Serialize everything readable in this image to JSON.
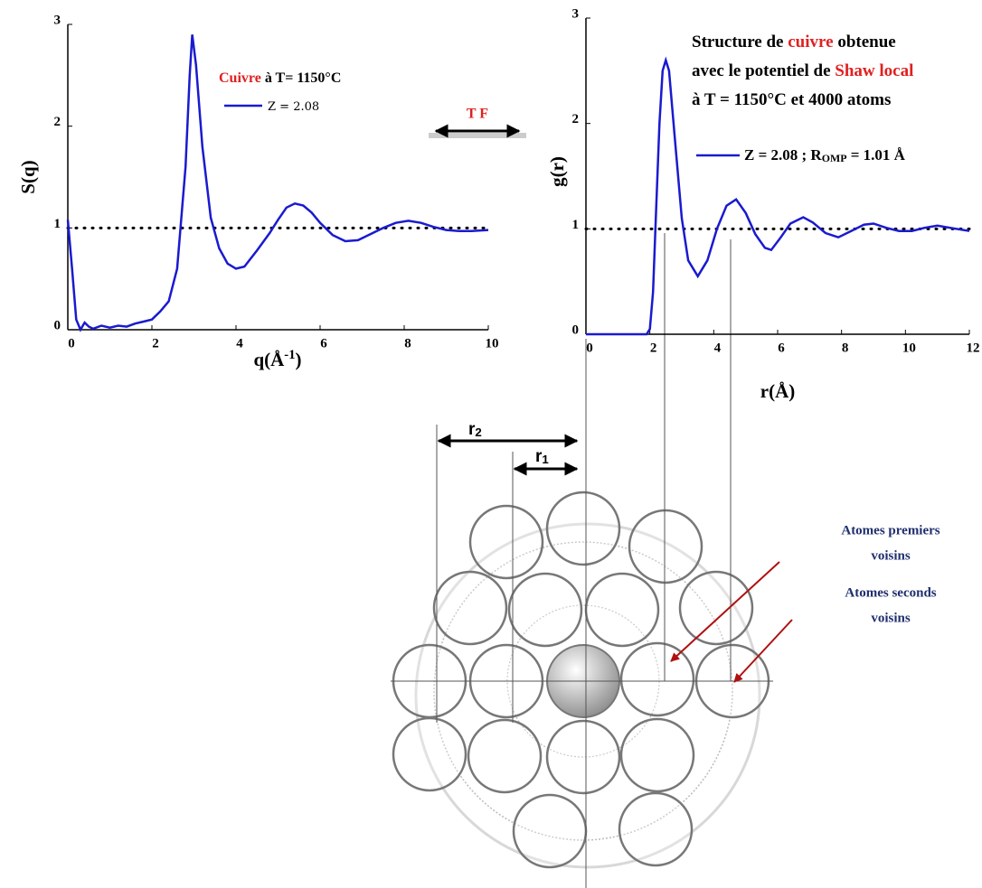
{
  "chart_data": [
    {
      "type": "line",
      "legend_title": [
        {
          "text": "Cuivre",
          "color": "#e02020"
        },
        {
          "text": " à T= 1150°C",
          "color": "#000000"
        }
      ],
      "ylabel": "S(q)",
      "xlabel": [
        "q(Å",
        "-1",
        ")"
      ],
      "xlim": [
        0,
        10
      ],
      "ylim": [
        0,
        3
      ],
      "xticks": [
        0,
        2,
        4,
        6,
        8,
        10
      ],
      "yticks": [
        0,
        1,
        2,
        3
      ],
      "reference_line": 1,
      "x": [
        0,
        0.1,
        0.2,
        0.3,
        0.4,
        0.5,
        0.6,
        0.8,
        1.0,
        1.2,
        1.4,
        1.6,
        1.8,
        2.0,
        2.2,
        2.4,
        2.6,
        2.8,
        2.9,
        2.96,
        3.05,
        3.2,
        3.4,
        3.6,
        3.8,
        4.0,
        4.2,
        4.5,
        4.8,
        5.0,
        5.2,
        5.4,
        5.6,
        5.8,
        6.0,
        6.3,
        6.6,
        6.9,
        7.2,
        7.5,
        7.8,
        8.1,
        8.4,
        8.7,
        9.0,
        9.3,
        9.6,
        10
      ],
      "series": [
        {
          "name": [
            "Z = 2.08"
          ],
          "color": "#1a1ad0",
          "values": [
            1.08,
            0.6,
            0.1,
            0.0,
            0.07,
            0.03,
            0.01,
            0.04,
            0.02,
            0.04,
            0.03,
            0.06,
            0.08,
            0.1,
            0.18,
            0.28,
            0.6,
            1.6,
            2.5,
            2.9,
            2.6,
            1.8,
            1.1,
            0.8,
            0.65,
            0.6,
            0.62,
            0.78,
            0.95,
            1.08,
            1.2,
            1.24,
            1.22,
            1.15,
            1.05,
            0.93,
            0.87,
            0.88,
            0.94,
            1.0,
            1.05,
            1.07,
            1.05,
            1.01,
            0.98,
            0.97,
            0.97,
            0.98
          ]
        }
      ]
    },
    {
      "type": "line",
      "annotation": [
        [
          {
            "text": "Structure de ",
            "color": "#000000"
          },
          {
            "text": "cuivre",
            "color": "#e02020"
          },
          {
            "text": " obtenue",
            "color": "#000000"
          }
        ],
        [
          {
            "text": "avec le potentiel de ",
            "color": "#000000"
          },
          {
            "text": "Shaw local",
            "color": "#e02020"
          }
        ],
        [
          {
            "text": "à T = 1150°C et 4000 atoms",
            "color": "#000000"
          }
        ]
      ],
      "ylabel": "g(r)",
      "xlabel": [
        "r(Å)"
      ],
      "xlim": [
        0,
        12
      ],
      "ylim": [
        0,
        3
      ],
      "xticks": [
        0,
        2,
        4,
        6,
        8,
        10,
        12
      ],
      "yticks": [
        0,
        1,
        2,
        3
      ],
      "reference_line": 1,
      "x": [
        0,
        1.0,
        1.9,
        2.0,
        2.1,
        2.2,
        2.3,
        2.4,
        2.5,
        2.6,
        2.8,
        3.0,
        3.2,
        3.5,
        3.8,
        4.1,
        4.4,
        4.7,
        5.0,
        5.3,
        5.6,
        5.8,
        6.1,
        6.4,
        6.8,
        7.1,
        7.5,
        7.9,
        8.3,
        8.7,
        9.0,
        9.4,
        9.8,
        10.2,
        10.6,
        11.0,
        11.4,
        12
      ],
      "series": [
        {
          "name": [
            "Z = 2.08 ; R",
            "OMP",
            " = 1.01 Å"
          ],
          "color": "#1a1ad0",
          "values": [
            0,
            0,
            0,
            0.05,
            0.4,
            1.2,
            2.0,
            2.5,
            2.6,
            2.5,
            1.8,
            1.1,
            0.7,
            0.55,
            0.7,
            1.0,
            1.22,
            1.28,
            1.15,
            0.95,
            0.82,
            0.8,
            0.92,
            1.05,
            1.11,
            1.06,
            0.96,
            0.92,
            0.98,
            1.04,
            1.05,
            1.01,
            0.98,
            0.98,
            1.01,
            1.03,
            1.01,
            0.98
          ]
        }
      ]
    }
  ],
  "transform_label": "T F",
  "diagram": {
    "r2_label": [
      "r",
      "2"
    ],
    "r1_label": [
      "r",
      "1"
    ],
    "labels": [
      [
        "Atomes premiers",
        "voisins"
      ],
      [
        "Atomes seconds",
        "voisins"
      ]
    ]
  }
}
